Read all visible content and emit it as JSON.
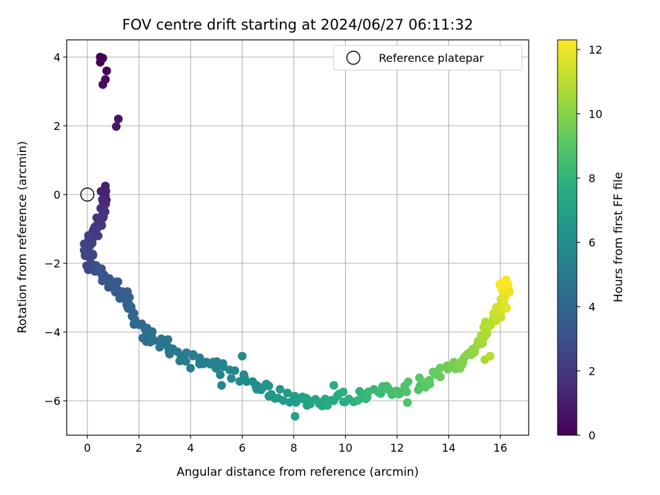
{
  "chart_data": {
    "type": "scatter",
    "title": "FOV centre drift starting at 2024/06/27 06:11:32",
    "xlabel": "Angular distance from reference (arcmin)",
    "ylabel": "Rotation from reference (arcmin)",
    "xlim": [
      -0.8,
      17.1
    ],
    "ylim": [
      -7.0,
      4.5
    ],
    "xticks": [
      "0",
      "2",
      "4",
      "6",
      "8",
      "10",
      "12",
      "14",
      "16"
    ],
    "yticks": [
      "−6",
      "−4",
      "−2",
      "0",
      "2",
      "4"
    ],
    "grid": true,
    "legend": {
      "label": "Reference platepar",
      "position": "top-right"
    },
    "reference_point": {
      "x": 0,
      "y": 0
    },
    "colorbar": {
      "label": "Hours from first FF file",
      "range": [
        0,
        12.3
      ],
      "ticks": [
        "0",
        "2",
        "4",
        "6",
        "8",
        "10",
        "12"
      ],
      "colormap": "viridis"
    },
    "anchors": [
      [
        0.5,
        4.0,
        0.0
      ],
      [
        0.6,
        3.97,
        0.05
      ],
      [
        0.5,
        3.85,
        0.1
      ],
      [
        0.75,
        3.6,
        0.2
      ],
      [
        0.7,
        3.35,
        0.3
      ],
      [
        0.6,
        3.2,
        0.35
      ],
      [
        1.2,
        2.2,
        0.7
      ],
      [
        1.12,
        1.98,
        0.8
      ],
      [
        0.7,
        0.25,
        1.1
      ],
      [
        0.72,
        0.1,
        1.15
      ],
      [
        0.7,
        -0.05,
        1.2
      ],
      [
        0.5,
        -0.65,
        1.8
      ],
      [
        0.4,
        -0.95,
        2.0
      ],
      [
        0.1,
        -1.2,
        2.2
      ],
      [
        0.0,
        -1.5,
        2.4
      ],
      [
        0.1,
        -1.95,
        2.6
      ],
      [
        0.5,
        -2.3,
        3.0
      ],
      [
        0.9,
        -2.6,
        3.3
      ],
      [
        1.3,
        -2.9,
        3.6
      ],
      [
        1.6,
        -3.2,
        3.9
      ],
      [
        2.0,
        -3.9,
        4.3
      ],
      [
        2.6,
        -4.2,
        4.6
      ],
      [
        3.3,
        -4.5,
        4.9
      ],
      [
        4.2,
        -4.85,
        5.2
      ],
      [
        5.2,
        -5.1,
        5.5
      ],
      [
        6.4,
        -5.5,
        6.0
      ],
      [
        7.4,
        -5.8,
        6.5
      ],
      [
        8.4,
        -6.0,
        7.0
      ],
      [
        9.2,
        -6.0,
        7.4
      ],
      [
        10.4,
        -5.85,
        7.9
      ],
      [
        11.3,
        -5.75,
        8.3
      ],
      [
        12.3,
        -5.65,
        8.7
      ],
      [
        13.3,
        -5.35,
        9.2
      ],
      [
        14.2,
        -5.0,
        9.7
      ],
      [
        14.8,
        -4.7,
        10.0
      ],
      [
        15.2,
        -4.3,
        10.4
      ],
      [
        15.5,
        -3.9,
        10.8
      ],
      [
        15.8,
        -3.5,
        11.2
      ],
      [
        16.0,
        -3.2,
        11.5
      ],
      [
        16.2,
        -2.8,
        11.9
      ],
      [
        16.1,
        -2.5,
        12.3
      ]
    ],
    "points": [
      [
        0.5,
        4.0,
        0.0
      ],
      [
        0.6,
        3.97,
        0.05
      ],
      [
        0.5,
        3.85,
        0.1
      ],
      [
        0.75,
        3.6,
        0.2
      ],
      [
        0.7,
        3.35,
        0.3
      ],
      [
        0.6,
        3.2,
        0.35
      ],
      [
        1.2,
        2.2,
        0.7
      ],
      [
        1.12,
        1.98,
        0.8
      ],
      [
        0.7,
        0.25,
        1.1
      ],
      [
        0.72,
        0.1,
        1.15
      ],
      [
        0.7,
        -0.05,
        1.2
      ],
      [
        4.0,
        -5.05,
        5.1
      ],
      [
        4.1,
        -4.65,
        5.2
      ],
      [
        5.2,
        -5.55,
        5.6
      ],
      [
        6.0,
        -4.7,
        5.8
      ],
      [
        8.05,
        -6.45,
        7.0
      ],
      [
        9.55,
        -5.55,
        7.6
      ],
      [
        12.4,
        -6.05,
        8.8
      ],
      [
        15.4,
        -4.8,
        10.6
      ],
      [
        15.6,
        -4.7,
        10.9
      ],
      [
        16.25,
        -3.3,
        11.8
      ],
      [
        16.3,
        -2.6,
        12.3
      ]
    ],
    "interp_steps": 10,
    "jitter": 0.17,
    "marker": "circle"
  }
}
